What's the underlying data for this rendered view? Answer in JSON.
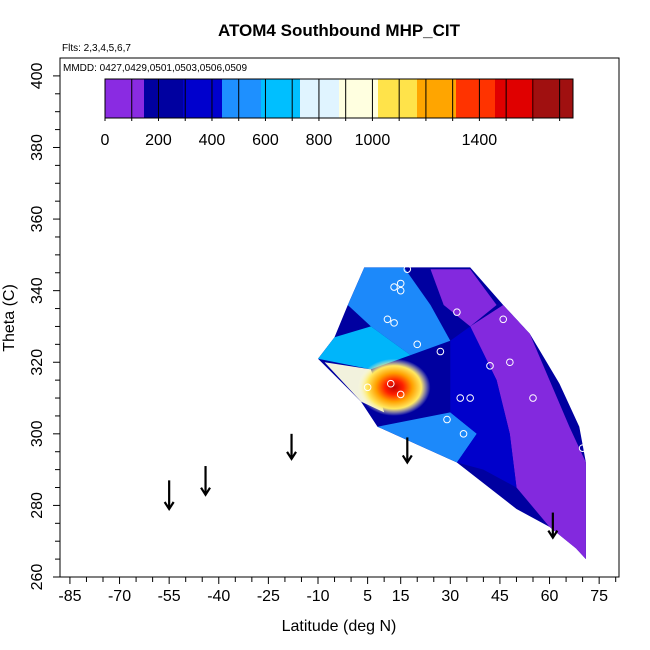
{
  "chart_data": {
    "type": "heatmap",
    "title": "ATOM4 Southbound MHP_CIT",
    "flights_label": "Flts: 2,3,4,5,6,7",
    "dates_label": "MMDD: 0427,0429,0501,0503,0506,0509",
    "xlabel": "Latitude (deg N)",
    "ylabel": "Theta (C)",
    "xlim": [
      -88,
      81
    ],
    "ylim": [
      260,
      405
    ],
    "x_ticks": [
      -85,
      -70,
      -55,
      -40,
      -25,
      -10,
      5,
      15,
      30,
      45,
      60,
      75
    ],
    "x_tick_labels": [
      "-85",
      "-70",
      "-55",
      "-40",
      "-25",
      "-10",
      "5",
      "15",
      "30",
      "45",
      "60",
      "75"
    ],
    "y_ticks": [
      260,
      280,
      300,
      320,
      340,
      360,
      380,
      400
    ],
    "y_tick_labels": [
      "260",
      "280",
      "300",
      "320",
      "340",
      "360",
      "380",
      "400"
    ],
    "colorbar": {
      "range": [
        0,
        1750
      ],
      "tick_values": [
        0,
        200,
        400,
        600,
        800,
        1000,
        1400
      ],
      "tick_labels": [
        "0",
        "200",
        "400",
        "600",
        "800",
        "1000",
        "1400"
      ],
      "colors": [
        "#8a2be2",
        "#0000a0",
        "#0000cd",
        "#1e90ff",
        "#00bfff",
        "#e0f4ff",
        "#ffffe0",
        "#ffe34a",
        "#ffa500",
        "#ff3300",
        "#e00000",
        "#a01010"
      ]
    },
    "field_polygon": [
      [
        16,
        346.5
      ],
      [
        4,
        346.5
      ],
      [
        -1,
        336
      ],
      [
        -5,
        327
      ],
      [
        -10,
        321
      ],
      [
        3,
        309
      ],
      [
        8,
        302
      ],
      [
        20,
        297
      ],
      [
        32,
        292
      ],
      [
        50,
        279
      ],
      [
        60,
        274
      ],
      [
        68,
        268
      ],
      [
        71,
        265
      ],
      [
        71,
        292
      ],
      [
        69,
        302
      ],
      [
        63,
        314
      ],
      [
        54,
        328
      ],
      [
        46,
        336
      ],
      [
        36,
        346.5
      ]
    ],
    "field_bands": [
      {
        "value": 40,
        "points": [
          [
            24,
            346
          ],
          [
            36,
            346
          ],
          [
            44,
            336
          ],
          [
            36,
            330
          ],
          [
            28,
            336
          ]
        ]
      },
      {
        "value": 120,
        "points": [
          [
            36,
            330
          ],
          [
            46,
            336
          ],
          [
            54,
            328
          ],
          [
            60,
            315
          ],
          [
            66,
            302
          ],
          [
            69,
            296
          ],
          [
            71,
            292
          ],
          [
            71,
            265
          ],
          [
            60,
            274
          ],
          [
            50,
            285
          ],
          [
            48,
            300
          ],
          [
            44,
            315
          ]
        ]
      },
      {
        "value": 550,
        "points": [
          [
            4,
            346.5
          ],
          [
            16,
            346.5
          ],
          [
            24,
            336
          ],
          [
            30,
            326
          ],
          [
            18,
            322
          ],
          [
            6,
            330
          ],
          [
            -1,
            336
          ]
        ]
      },
      {
        "value": 650,
        "points": [
          [
            -10,
            321
          ],
          [
            -5,
            327
          ],
          [
            6,
            330
          ],
          [
            18,
            322
          ],
          [
            6,
            318
          ]
        ]
      },
      {
        "value": 550,
        "points": [
          [
            8,
            302
          ],
          [
            20,
            297
          ],
          [
            32,
            292
          ],
          [
            38,
            300
          ],
          [
            30,
            306
          ]
        ]
      },
      {
        "value": 350,
        "points": [
          [
            30,
            326
          ],
          [
            36,
            330
          ],
          [
            44,
            315
          ],
          [
            48,
            300
          ],
          [
            50,
            285
          ],
          [
            40,
            290
          ],
          [
            32,
            292
          ],
          [
            38,
            300
          ],
          [
            30,
            306
          ]
        ]
      },
      {
        "value": 900,
        "points": [
          [
            -8,
            320
          ],
          [
            6,
            318
          ],
          [
            10,
            306
          ],
          [
            3,
            309
          ]
        ]
      }
    ],
    "hotspot": {
      "center": [
        13,
        313
      ],
      "rx": 11,
      "ry": 8,
      "value_peak": 1650
    },
    "obs_points": [
      {
        "lat": 17,
        "theta": 346
      },
      {
        "lat": 13,
        "theta": 341
      },
      {
        "lat": 15,
        "theta": 342
      },
      {
        "lat": 15,
        "theta": 340
      },
      {
        "lat": 32,
        "theta": 334
      },
      {
        "lat": 11,
        "theta": 332
      },
      {
        "lat": 13,
        "theta": 331
      },
      {
        "lat": 20,
        "theta": 325
      },
      {
        "lat": 27,
        "theta": 323
      },
      {
        "lat": 46,
        "theta": 332
      },
      {
        "lat": 48,
        "theta": 320
      },
      {
        "lat": 42,
        "theta": 319
      },
      {
        "lat": 5,
        "theta": 313
      },
      {
        "lat": 12,
        "theta": 314
      },
      {
        "lat": 15,
        "theta": 311
      },
      {
        "lat": 33,
        "theta": 310
      },
      {
        "lat": 36,
        "theta": 310
      },
      {
        "lat": 55,
        "theta": 310
      },
      {
        "lat": 29,
        "theta": 304
      },
      {
        "lat": 34,
        "theta": 300
      },
      {
        "lat": 70,
        "theta": 296
      }
    ],
    "arrows": [
      {
        "lat": -55,
        "theta_top": 287,
        "theta_bottom": 279
      },
      {
        "lat": -44,
        "theta_top": 291,
        "theta_bottom": 283
      },
      {
        "lat": -18,
        "theta_top": 300,
        "theta_bottom": 293
      },
      {
        "lat": 17,
        "theta_top": 299,
        "theta_bottom": 292
      },
      {
        "lat": 61,
        "theta_top": 278,
        "theta_bottom": 271
      }
    ]
  }
}
